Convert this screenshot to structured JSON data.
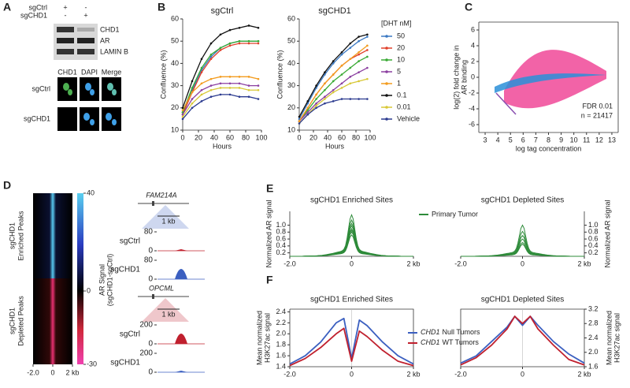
{
  "panel_letters": {
    "a": "A",
    "b": "B",
    "c": "C",
    "d": "D",
    "e": "E",
    "f": "F"
  },
  "panel_a": {
    "rows": [
      "sgCtrl",
      "sgCHD1"
    ],
    "signs": [
      [
        "+",
        "-"
      ],
      [
        "-",
        "+"
      ]
    ],
    "bands": [
      "CHD1",
      "AR",
      "LAMIN B"
    ],
    "stains": [
      "CHD1",
      "DAPI",
      "Merge"
    ],
    "image_rows": [
      "sgCtrl",
      "sgCHD1"
    ]
  },
  "panel_b": {
    "x_label": "Hours",
    "y_label": "Confluence (%)",
    "xlim": [
      0,
      100
    ],
    "xticks": [
      0,
      20,
      40,
      60,
      80,
      100
    ],
    "ylim": [
      10,
      60
    ],
    "yticks": [
      10,
      20,
      30,
      40,
      50,
      60
    ],
    "x": [
      0,
      12,
      24,
      36,
      48,
      60,
      72,
      84,
      96
    ],
    "legend_title": "[DHT nM]",
    "legend": [
      {
        "name": "50",
        "color": "#3a78c2"
      },
      {
        "name": "20",
        "color": "#e0402a"
      },
      {
        "name": "10",
        "color": "#3aaa35"
      },
      {
        "name": "5",
        "color": "#8b3fa0"
      },
      {
        "name": "1",
        "color": "#f39c1f"
      },
      {
        "name": "0.1",
        "color": "#111111"
      },
      {
        "name": "0.01",
        "color": "#d8c837"
      },
      {
        "name": "Vehicle",
        "color": "#2b3a8f"
      }
    ],
    "charts": [
      {
        "title": "sgCtrl",
        "title_color": "#d0202e",
        "values": [
          [
            18,
            28,
            37,
            43,
            47,
            49,
            50,
            50,
            50
          ],
          [
            17,
            27,
            36,
            42,
            46,
            48,
            49,
            49,
            49
          ],
          [
            18,
            29,
            38,
            44,
            47,
            49,
            50,
            50,
            50
          ],
          [
            17,
            24,
            28,
            30,
            31,
            31,
            31,
            30,
            30
          ],
          [
            19,
            27,
            31,
            33,
            34,
            34,
            34,
            34,
            33
          ],
          [
            20,
            32,
            42,
            49,
            53,
            55,
            56,
            57,
            56
          ],
          [
            16,
            22,
            26,
            28,
            29,
            29,
            29,
            28,
            28
          ],
          [
            15,
            20,
            23,
            25,
            26,
            26,
            25,
            25,
            24
          ]
        ]
      },
      {
        "title": "sgCHD1",
        "title_color": "#3b5fc0",
        "values": [
          [
            15,
            22,
            29,
            35,
            40,
            44,
            47,
            50,
            52
          ],
          [
            14,
            20,
            26,
            31,
            35,
            39,
            42,
            44,
            46
          ],
          [
            14,
            19,
            24,
            28,
            32,
            35,
            38,
            41,
            43
          ],
          [
            14,
            18,
            22,
            25,
            28,
            31,
            34,
            36,
            38
          ],
          [
            14,
            20,
            26,
            31,
            35,
            39,
            42,
            45,
            48
          ],
          [
            16,
            23,
            30,
            36,
            41,
            45,
            49,
            52,
            53
          ],
          [
            13,
            17,
            21,
            24,
            27,
            29,
            31,
            32,
            33
          ],
          [
            13,
            17,
            20,
            22,
            23,
            24,
            24,
            24,
            24
          ]
        ]
      }
    ]
  },
  "panel_c": {
    "x_label": "log tag concentration",
    "y_label": [
      "log(2) fold change in",
      "AR binding"
    ],
    "xlim": [
      2.5,
      13.5
    ],
    "xticks": [
      3,
      4,
      5,
      6,
      7,
      8,
      9,
      10,
      11,
      12,
      13
    ],
    "ylim": [
      -7,
      7
    ],
    "yticks": [
      -6,
      -4,
      -2,
      0,
      2,
      4,
      6
    ],
    "annotations": [
      "FDR 0.01",
      "n = 21417"
    ]
  },
  "panel_d": {
    "groups": [
      [
        "sgCHD1",
        "Enriched Peaks"
      ],
      [
        "sgCHD1",
        "Depleted Peaks"
      ]
    ],
    "xlim": [
      -2,
      2
    ],
    "xticks": [
      {
        "value": -2,
        "label": "-2.0"
      },
      0,
      {
        "value": 2,
        "label": "2 kb"
      }
    ],
    "colorbar": {
      "lim": [
        -30,
        40
      ],
      "ticks": [
        40,
        0,
        -30
      ],
      "label": [
        "AR Signal",
        "(sgCHD1-sgCtrl)"
      ]
    },
    "tracks": [
      {
        "gene": "FAM214A",
        "scale_bar": "1 kb",
        "color": "#3b5fc0",
        "samples": [
          {
            "name": "sgCtrl",
            "color": "#c0202e",
            "ylim": [
              0,
              80
            ],
            "ticks": [
              80,
              0
            ]
          },
          {
            "name": "sgCHD1",
            "color": "#3b5fc0",
            "ylim": [
              0,
              80
            ],
            "ticks": [
              80,
              0
            ]
          }
        ]
      },
      {
        "gene": "OPCML",
        "scale_bar": "1 kb",
        "color": "#c0202e",
        "samples": [
          {
            "name": "sgCtrl",
            "color": "#c0202e",
            "ylim": [
              0,
              200
            ],
            "ticks": [
              200,
              0
            ]
          },
          {
            "name": "sgCHD1",
            "color": "#3b5fc0",
            "ylim": [
              0,
              200
            ],
            "ticks": [
              200,
              0
            ]
          }
        ]
      }
    ]
  },
  "panel_e": {
    "xlim": [
      -2,
      2
    ],
    "xticks": [
      {
        "value": -2,
        "label": "-2.0"
      },
      0,
      {
        "value": 2,
        "label": "2 kb"
      }
    ],
    "legend": "Primary Tumor",
    "color": "#2e8b3a",
    "charts": [
      {
        "title": "sgCHD1 Enriched Sites",
        "title_color": "#3b5fc0",
        "y_label": "Normalized AR signal",
        "ylim": [
          0.1,
          1.4
        ],
        "yticks": [
          0.2,
          0.4,
          0.6,
          0.8,
          {
            "value": 1,
            "label": "1.0"
          }
        ],
        "peaks": [
          1.3,
          1.15,
          1.05,
          0.98,
          0.9,
          0.85,
          0.8,
          0.72
        ]
      },
      {
        "title": "sgCHD1 Depleted Sites",
        "title_color": "#c0202e",
        "y_label": "Normalized AR signal",
        "ylim": [
          0.1,
          1.4
        ],
        "yticks": [
          0.2,
          0.4,
          0.6,
          0.8,
          {
            "value": 1,
            "label": "1.0"
          }
        ],
        "peaks": [
          1.0,
          0.82,
          0.7,
          0.6,
          0.5,
          0.45
        ]
      }
    ]
  },
  "panel_f": {
    "xlim": [
      -2,
      2
    ],
    "xticks": [
      {
        "value": -2,
        "label": "-2.0"
      },
      0,
      {
        "value": 2,
        "label": "2 kb"
      }
    ],
    "x": [
      -2,
      -1.5,
      -1,
      -0.5,
      -0.25,
      0,
      0.25,
      0.5,
      1,
      1.5,
      2
    ],
    "legend": [
      {
        "gene": "CHD1",
        "label": "Null Tumors",
        "color": "#3b5fc0"
      },
      {
        "gene": "CHD1",
        "label": "WT Tumors",
        "color": "#c0202e"
      }
    ],
    "charts": [
      {
        "title": "sgCHD1 Enriched Sites",
        "title_color": "#3b5fc0",
        "y_label": [
          "Mean normalized",
          "H3K27ac signal"
        ],
        "ylim": [
          1.4,
          2.45
        ],
        "yticks": [
          1.4,
          1.6,
          1.8,
          {
            "value": 2,
            "label": "2.0"
          },
          2.2,
          2.4
        ],
        "values": [
          [
            1.45,
            1.6,
            1.85,
            2.2,
            2.28,
            1.55,
            2.25,
            2.15,
            1.85,
            1.6,
            1.45
          ],
          [
            1.42,
            1.55,
            1.75,
            2.0,
            2.1,
            1.5,
            2.05,
            1.95,
            1.7,
            1.5,
            1.42
          ]
        ]
      },
      {
        "title": "sgCHD1 Depleted Sites",
        "title_color": "#c0202e",
        "y_label": [
          "Mean normalized",
          "H3K27ac signal"
        ],
        "ylim": [
          1.6,
          3.2
        ],
        "yticks": [
          1.6,
          {
            "value": 2,
            "label": "2.0"
          },
          2.4,
          2.8,
          3.2
        ],
        "values": [
          [
            1.7,
            1.9,
            2.3,
            2.7,
            3.0,
            2.75,
            3.0,
            2.75,
            2.3,
            1.95,
            1.7
          ],
          [
            1.65,
            1.85,
            2.2,
            2.65,
            3.0,
            2.8,
            3.0,
            2.65,
            2.2,
            1.8,
            1.65
          ]
        ]
      }
    ]
  }
}
